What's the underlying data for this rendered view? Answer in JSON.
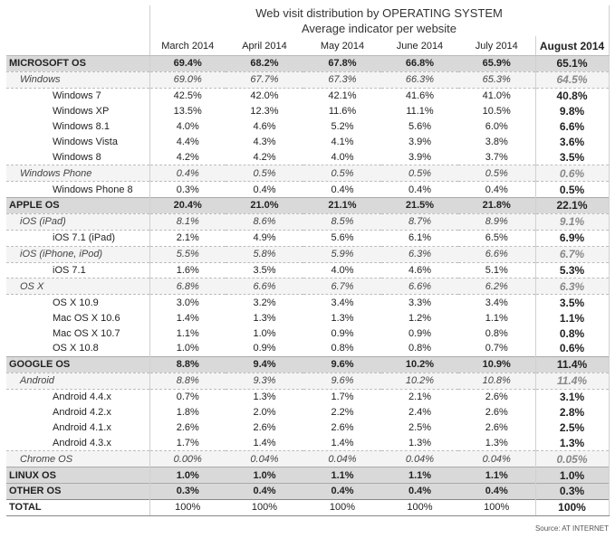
{
  "header": {
    "title": "Web visit distribution by OPERATING SYSTEM",
    "subtitle": "Average indicator per website",
    "months": [
      "March 2014",
      "April 2014",
      "May 2014",
      "June 2014",
      "July 2014",
      "August 2014"
    ]
  },
  "rows": [
    {
      "level": "top",
      "label": "MICROSOFT OS",
      "values": [
        "69.4%",
        "68.2%",
        "67.8%",
        "66.8%",
        "65.9%",
        "65.1%"
      ]
    },
    {
      "level": "group",
      "label": "Windows",
      "values": [
        "69.0%",
        "67.7%",
        "67.3%",
        "66.3%",
        "65.3%",
        "64.5%"
      ]
    },
    {
      "level": "leaf",
      "label": "Windows 7",
      "values": [
        "42.5%",
        "42.0%",
        "42.1%",
        "41.6%",
        "41.0%",
        "40.8%"
      ]
    },
    {
      "level": "leaf",
      "label": "Windows XP",
      "values": [
        "13.5%",
        "12.3%",
        "11.6%",
        "11.1%",
        "10.5%",
        "9.8%"
      ]
    },
    {
      "level": "leaf",
      "label": "Windows 8.1",
      "values": [
        "4.0%",
        "4.6%",
        "5.2%",
        "5.6%",
        "6.0%",
        "6.6%"
      ]
    },
    {
      "level": "leaf",
      "label": "Windows Vista",
      "values": [
        "4.4%",
        "4.3%",
        "4.1%",
        "3.9%",
        "3.8%",
        "3.6%"
      ]
    },
    {
      "level": "leaf",
      "label": "Windows 8",
      "values": [
        "4.2%",
        "4.2%",
        "4.0%",
        "3.9%",
        "3.7%",
        "3.5%"
      ]
    },
    {
      "level": "group",
      "label": "Windows Phone",
      "values": [
        "0.4%",
        "0.5%",
        "0.5%",
        "0.5%",
        "0.5%",
        "0.6%"
      ]
    },
    {
      "level": "leaf",
      "label": "Windows Phone 8",
      "values": [
        "0.3%",
        "0.4%",
        "0.4%",
        "0.4%",
        "0.4%",
        "0.5%"
      ]
    },
    {
      "level": "top",
      "label": "APPLE OS",
      "values": [
        "20.4%",
        "21.0%",
        "21.1%",
        "21.5%",
        "21.8%",
        "22.1%"
      ]
    },
    {
      "level": "group",
      "label": "iOS (iPad)",
      "values": [
        "8.1%",
        "8.6%",
        "8.5%",
        "8.7%",
        "8.9%",
        "9.1%"
      ]
    },
    {
      "level": "leaf",
      "label": "iOS 7.1 (iPad)",
      "values": [
        "2.1%",
        "4.9%",
        "5.6%",
        "6.1%",
        "6.5%",
        "6.9%"
      ]
    },
    {
      "level": "group",
      "label": "iOS (iPhone, iPod)",
      "values": [
        "5.5%",
        "5.8%",
        "5.9%",
        "6.3%",
        "6.6%",
        "6.7%"
      ]
    },
    {
      "level": "leaf",
      "label": "iOS 7.1",
      "values": [
        "1.6%",
        "3.5%",
        "4.0%",
        "4.6%",
        "5.1%",
        "5.3%"
      ]
    },
    {
      "level": "group",
      "label": "OS X",
      "values": [
        "6.8%",
        "6.6%",
        "6.7%",
        "6.6%",
        "6.2%",
        "6.3%"
      ]
    },
    {
      "level": "leaf",
      "label": "OS X 10.9",
      "values": [
        "3.0%",
        "3.2%",
        "3.4%",
        "3.3%",
        "3.4%",
        "3.5%"
      ]
    },
    {
      "level": "leaf",
      "label": "Mac OS X 10.6",
      "values": [
        "1.4%",
        "1.3%",
        "1.3%",
        "1.2%",
        "1.1%",
        "1.1%"
      ]
    },
    {
      "level": "leaf",
      "label": "Mac OS X 10.7",
      "values": [
        "1.1%",
        "1.0%",
        "0.9%",
        "0.9%",
        "0.8%",
        "0.8%"
      ]
    },
    {
      "level": "leaf",
      "label": "OS X 10.8",
      "values": [
        "1.0%",
        "0.9%",
        "0.8%",
        "0.8%",
        "0.7%",
        "0.6%"
      ]
    },
    {
      "level": "top",
      "label": "GOOGLE OS",
      "values": [
        "8.8%",
        "9.4%",
        "9.6%",
        "10.2%",
        "10.9%",
        "11.4%"
      ]
    },
    {
      "level": "group",
      "label": "Android",
      "values": [
        "8.8%",
        "9.3%",
        "9.6%",
        "10.2%",
        "10.8%",
        "11.4%"
      ]
    },
    {
      "level": "leaf",
      "label": "Android 4.4.x",
      "values": [
        "0.7%",
        "1.3%",
        "1.7%",
        "2.1%",
        "2.6%",
        "3.1%"
      ]
    },
    {
      "level": "leaf",
      "label": "Android 4.2.x",
      "values": [
        "1.8%",
        "2.0%",
        "2.2%",
        "2.4%",
        "2.6%",
        "2.8%"
      ]
    },
    {
      "level": "leaf",
      "label": "Android 4.1.x",
      "values": [
        "2.6%",
        "2.6%",
        "2.6%",
        "2.5%",
        "2.6%",
        "2.5%"
      ]
    },
    {
      "level": "leaf",
      "label": "Android 4.3.x",
      "values": [
        "1.7%",
        "1.4%",
        "1.4%",
        "1.3%",
        "1.3%",
        "1.3%"
      ]
    },
    {
      "level": "group",
      "label": "Chrome OS",
      "values": [
        "0.00%",
        "0.04%",
        "0.04%",
        "0.04%",
        "0.04%",
        "0.05%"
      ]
    },
    {
      "level": "top",
      "label": "LINUX OS",
      "values": [
        "1.0%",
        "1.0%",
        "1.1%",
        "1.1%",
        "1.1%",
        "1.0%"
      ]
    },
    {
      "level": "top",
      "label": "OTHER OS",
      "values": [
        "0.3%",
        "0.4%",
        "0.4%",
        "0.4%",
        "0.4%",
        "0.3%"
      ]
    },
    {
      "level": "total",
      "label": "TOTAL",
      "values": [
        "100%",
        "100%",
        "100%",
        "100%",
        "100%",
        "100%"
      ]
    }
  ],
  "source": "Source:  AT INTERNET"
}
